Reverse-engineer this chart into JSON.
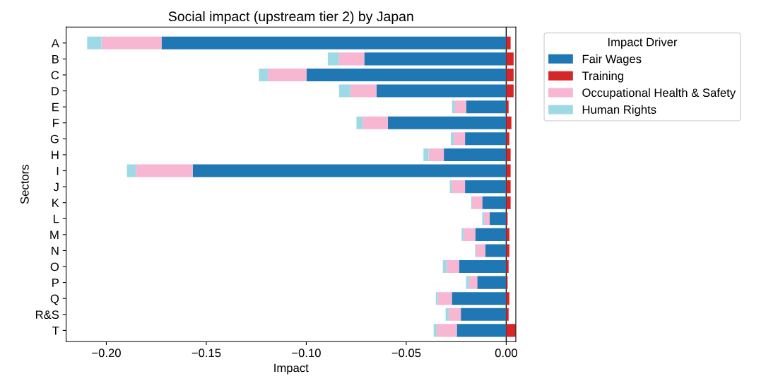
{
  "chart_data": {
    "type": "bar",
    "orientation": "horizontal",
    "stacked": true,
    "title": "Social impact (upstream tier 2) by Japan",
    "xlabel": "Impact",
    "ylabel": "Sectors",
    "legend_title": "Impact Driver",
    "legend": "top right",
    "categories": [
      "A",
      "B",
      "C",
      "D",
      "E",
      "F",
      "G",
      "H",
      "I",
      "J",
      "K",
      "L",
      "M",
      "N",
      "O",
      "P",
      "Q",
      "R&S",
      "T"
    ],
    "series": [
      {
        "name": "Fair Wages",
        "color": "#1f77b4",
        "values": [
          -0.1724,
          -0.071,
          -0.0999,
          -0.0648,
          -0.02,
          -0.0592,
          -0.0206,
          -0.0312,
          -0.1568,
          -0.0206,
          -0.012,
          -0.0083,
          -0.0155,
          -0.0104,
          -0.0236,
          -0.0145,
          -0.0272,
          -0.0227,
          -0.0247
        ]
      },
      {
        "name": "Training",
        "color": "#d62728",
        "values": [
          0.0022,
          0.0037,
          0.0037,
          0.0037,
          0.0012,
          0.0026,
          0.0016,
          0.0022,
          0.0022,
          0.0022,
          0.0022,
          0.0007,
          0.0016,
          0.0016,
          0.0012,
          0.0007,
          0.0016,
          0.0012,
          0.0047
        ]
      },
      {
        "name": "Occupational Health & Safety",
        "color": "#f7b6d2",
        "values": [
          -0.03,
          -0.0126,
          -0.0193,
          -0.0132,
          -0.0056,
          -0.0126,
          -0.0056,
          -0.0076,
          -0.0284,
          -0.0067,
          -0.0051,
          -0.0028,
          -0.0059,
          -0.0048,
          -0.0061,
          -0.0041,
          -0.007,
          -0.006,
          -0.0101
        ]
      },
      {
        "name": "Human Rights",
        "color": "#9edae5",
        "values": [
          -0.0072,
          -0.0056,
          -0.0045,
          -0.0056,
          -0.0015,
          -0.0031,
          -0.0015,
          -0.0026,
          -0.0045,
          -0.0009,
          -0.0004,
          -0.0009,
          -0.0009,
          -0.0004,
          -0.002,
          -0.0015,
          -0.001,
          -0.0016,
          -0.0015
        ]
      }
    ],
    "xlim": [
      -0.2201,
      0.0048
    ],
    "xticks": [
      {
        "value": -0.2,
        "label": "−0.20"
      },
      {
        "value": -0.15,
        "label": "−0.15"
      },
      {
        "value": -0.1,
        "label": "−0.10"
      },
      {
        "value": -0.05,
        "label": "−0.05"
      },
      {
        "value": 0.0,
        "label": "0.00"
      }
    ],
    "ref_lines": [
      {
        "axis": "x",
        "value": 0,
        "color": "#000000"
      }
    ]
  }
}
